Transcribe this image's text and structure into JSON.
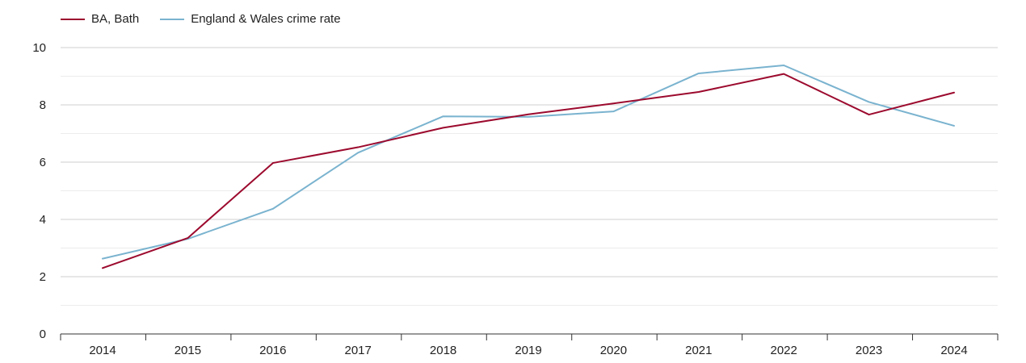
{
  "chart_data": {
    "type": "line",
    "x": [
      "2014",
      "2015",
      "2016",
      "2017",
      "2018",
      "2019",
      "2020",
      "2021",
      "2022",
      "2023",
      "2024"
    ],
    "series": [
      {
        "name": "BA, Bath",
        "color": "#9c0a2e",
        "values": [
          2.3,
          3.35,
          5.97,
          6.52,
          7.2,
          7.67,
          8.05,
          8.45,
          9.08,
          7.66,
          8.43
        ]
      },
      {
        "name": "England & Wales crime rate",
        "color": "#7ab3cf",
        "values": [
          2.63,
          3.32,
          4.37,
          6.33,
          7.6,
          7.58,
          7.77,
          9.1,
          9.38,
          8.1,
          7.27
        ]
      }
    ],
    "ylim": [
      0,
      10
    ],
    "yticks": [
      "0",
      "2",
      "4",
      "6",
      "8",
      "10"
    ],
    "minor_grid": [
      1,
      3,
      5,
      7,
      9
    ],
    "grid": true,
    "legend_position": "top-left",
    "title": "",
    "xlabel": "",
    "ylabel": ""
  }
}
